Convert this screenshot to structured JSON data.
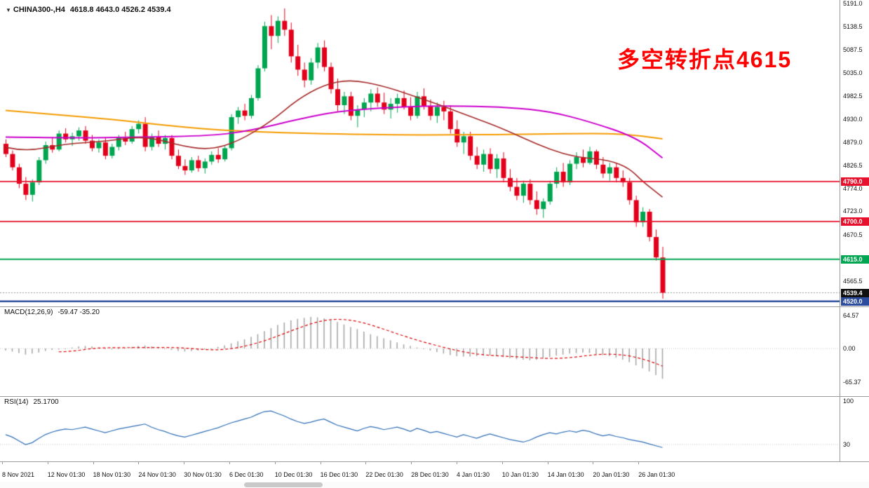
{
  "symbol_bar": {
    "expander": "▼",
    "symbol": "CHINA300-,H4",
    "ohlc": "4618.8 4643.0 4526.2 4539.4"
  },
  "chart_data": [
    {
      "id": "price-panel",
      "type": "candlestick",
      "title": "CHINA300-,H4",
      "timeframe": "H4",
      "last_ohlc": {
        "open": 4618.8,
        "high": 4643.0,
        "low": 4526.2,
        "close": 4539.4
      },
      "ylim": [
        4509,
        5199
      ],
      "grid": false,
      "y_axis": {
        "labels": [
          "5191.0",
          "5138.5",
          "5087.5",
          "5035.0",
          "4982.5",
          "4930.0",
          "4879.0",
          "4826.5",
          "4774.0",
          "4723.0",
          "4670.5",
          "4618.0",
          "4565.5"
        ],
        "values": [
          5191.0,
          5138.5,
          5087.5,
          5035.0,
          4982.5,
          4930.0,
          4879.0,
          4826.5,
          4774.0,
          4723.0,
          4670.5,
          4618.0,
          4565.5
        ]
      },
      "x_tick_labels": [
        "8 Nov 2021",
        "12 Nov 01:30",
        "18 Nov 01:30",
        "24 Nov 01:30",
        "30 Nov 01:30",
        "6 Dec 01:30",
        "10 Dec 01:30",
        "16 Dec 01:30",
        "22 Dec 01:30",
        "28 Dec 01:30",
        "4 Jan 01:30",
        "10 Jan 01:30",
        "14 Jan 01:30",
        "20 Jan 01:30",
        "26 Jan 01:30"
      ],
      "up_color": "#00a550",
      "down_color": "#e3001b",
      "candles": [
        [
          4875,
          4885,
          4845,
          4852
        ],
        [
          4852,
          4860,
          4815,
          4822
        ],
        [
          4822,
          4830,
          4775,
          4785
        ],
        [
          4785,
          4800,
          4748,
          4760
        ],
        [
          4760,
          4795,
          4745,
          4788
        ],
        [
          4788,
          4845,
          4782,
          4838
        ],
        [
          4838,
          4880,
          4830,
          4872
        ],
        [
          4872,
          4890,
          4855,
          4862
        ],
        [
          4862,
          4905,
          4858,
          4898
        ],
        [
          4898,
          4910,
          4878,
          4885
        ],
        [
          4885,
          4900,
          4870,
          4892
        ],
        [
          4892,
          4912,
          4882,
          4905
        ],
        [
          4905,
          4915,
          4875,
          4882
        ],
        [
          4882,
          4895,
          4858,
          4865
        ],
        [
          4865,
          4885,
          4855,
          4878
        ],
        [
          4878,
          4888,
          4840,
          4848
        ],
        [
          4848,
          4875,
          4842,
          4868
        ],
        [
          4868,
          4895,
          4860,
          4888
        ],
        [
          4888,
          4902,
          4872,
          4880
        ],
        [
          4880,
          4915,
          4875,
          4908
        ],
        [
          4908,
          4928,
          4898,
          4920
        ],
        [
          4920,
          4935,
          4858,
          4868
        ],
        [
          4868,
          4898,
          4860,
          4890
        ],
        [
          4890,
          4905,
          4868,
          4875
        ],
        [
          4875,
          4895,
          4862,
          4888
        ],
        [
          4888,
          4895,
          4840,
          4848
        ],
        [
          4848,
          4862,
          4818,
          4825
        ],
        [
          4825,
          4840,
          4805,
          4815
        ],
        [
          4815,
          4845,
          4810,
          4838
        ],
        [
          4838,
          4848,
          4812,
          4820
        ],
        [
          4820,
          4842,
          4808,
          4835
        ],
        [
          4835,
          4858,
          4828,
          4850
        ],
        [
          4850,
          4865,
          4832,
          4840
        ],
        [
          4840,
          4872,
          4835,
          4865
        ],
        [
          4865,
          4942,
          4860,
          4935
        ],
        [
          4935,
          4958,
          4920,
          4950
        ],
        [
          4950,
          4965,
          4928,
          4938
        ],
        [
          4938,
          4985,
          4932,
          4978
        ],
        [
          4978,
          5052,
          4972,
          5045
        ],
        [
          5045,
          5150,
          5038,
          5140
        ],
        [
          5140,
          5165,
          5088,
          5118
        ],
        [
          5118,
          5162,
          5102,
          5152
        ],
        [
          5152,
          5180,
          5118,
          5132
        ],
        [
          5132,
          5148,
          5058,
          5072
        ],
        [
          5072,
          5098,
          5028,
          5042
        ],
        [
          5042,
          5058,
          5002,
          5018
        ],
        [
          5018,
          5068,
          5008,
          5058
        ],
        [
          5058,
          5102,
          5045,
          5092
        ],
        [
          5092,
          5108,
          5038,
          5048
        ],
        [
          5048,
          5058,
          4988,
          4998
        ],
        [
          4998,
          5022,
          4948,
          4962
        ],
        [
          4962,
          4992,
          4942,
          4982
        ],
        [
          4982,
          4992,
          4928,
          4938
        ],
        [
          4938,
          4962,
          4912,
          4952
        ],
        [
          4952,
          4978,
          4935,
          4968
        ],
        [
          4968,
          4998,
          4948,
          4988
        ],
        [
          4988,
          5002,
          4958,
          4968
        ],
        [
          4968,
          4990,
          4942,
          4952
        ],
        [
          4952,
          4978,
          4932,
          4965
        ],
        [
          4965,
          4988,
          4945,
          4978
        ],
        [
          4978,
          4995,
          4952,
          4958
        ],
        [
          4958,
          4980,
          4928,
          4938
        ],
        [
          4938,
          4992,
          4932,
          4982
        ],
        [
          4982,
          5000,
          4952,
          4960
        ],
        [
          4960,
          4975,
          4928,
          4938
        ],
        [
          4938,
          4968,
          4922,
          4958
        ],
        [
          4958,
          4972,
          4928,
          4948
        ],
        [
          4948,
          4962,
          4898,
          4908
        ],
        [
          4908,
          4928,
          4868,
          4878
        ],
        [
          4878,
          4902,
          4852,
          4892
        ],
        [
          4892,
          4902,
          4838,
          4848
        ],
        [
          4848,
          4868,
          4818,
          4828
        ],
        [
          4828,
          4862,
          4812,
          4852
        ],
        [
          4852,
          4865,
          4808,
          4818
        ],
        [
          4818,
          4852,
          4798,
          4842
        ],
        [
          4842,
          4856,
          4788,
          4798
        ],
        [
          4798,
          4818,
          4768,
          4778
        ],
        [
          4778,
          4798,
          4748,
          4758
        ],
        [
          4758,
          4792,
          4742,
          4785
        ],
        [
          4785,
          4795,
          4738,
          4748
        ],
        [
          4748,
          4768,
          4715,
          4728
        ],
        [
          4728,
          4752,
          4708,
          4745
        ],
        [
          4745,
          4792,
          4738,
          4785
        ],
        [
          4785,
          4822,
          4775,
          4812
        ],
        [
          4812,
          4832,
          4778,
          4788
        ],
        [
          4788,
          4838,
          4782,
          4830
        ],
        [
          4830,
          4856,
          4818,
          4845
        ],
        [
          4845,
          4862,
          4822,
          4832
        ],
        [
          4832,
          4868,
          4828,
          4858
        ],
        [
          4858,
          4862,
          4818,
          4828
        ],
        [
          4828,
          4845,
          4798,
          4808
        ],
        [
          4808,
          4832,
          4792,
          4822
        ],
        [
          4822,
          4832,
          4788,
          4798
        ],
        [
          4798,
          4815,
          4778,
          4788
        ],
        [
          4788,
          4798,
          4738,
          4748
        ],
        [
          4748,
          4758,
          4688,
          4698
        ],
        [
          4698,
          4732,
          4688,
          4722
        ],
        [
          4722,
          4728,
          4655,
          4665
        ],
        [
          4665,
          4682,
          4612,
          4619
        ],
        [
          4618.8,
          4643.0,
          4526.2,
          4539.4
        ]
      ],
      "moving_averages": [
        {
          "name": "orange-ma",
          "color": "#f59b00",
          "width": 2,
          "points": [
            [
              0,
              4950
            ],
            [
              8,
              4940
            ],
            [
              16,
              4930
            ],
            [
              25,
              4915
            ],
            [
              33,
              4905
            ],
            [
              42,
              4900
            ],
            [
              50,
              4897
            ],
            [
              59,
              4895
            ],
            [
              67,
              4895
            ],
            [
              76,
              4896
            ],
            [
              84,
              4898
            ],
            [
              93,
              4898
            ],
            [
              99,
              4886
            ]
          ]
        },
        {
          "name": "magenta-ma",
          "color": "#cc00cc",
          "width": 2,
          "points": [
            [
              0,
              4890
            ],
            [
              10,
              4888
            ],
            [
              20,
              4890
            ],
            [
              31,
              4893
            ],
            [
              37,
              4905
            ],
            [
              44,
              4930
            ],
            [
              50,
              4948
            ],
            [
              57,
              4956
            ],
            [
              63,
              4960
            ],
            [
              69,
              4960
            ],
            [
              76,
              4957
            ],
            [
              82,
              4948
            ],
            [
              88,
              4925
            ],
            [
              95,
              4890
            ],
            [
              99,
              4843
            ]
          ]
        },
        {
          "name": "darkred-ma",
          "color": "#a52a2a",
          "width": 1.6,
          "points": [
            [
              0,
              4867
            ],
            [
              3,
              4857
            ],
            [
              9,
              4875
            ],
            [
              15,
              4880
            ],
            [
              21,
              4893
            ],
            [
              27,
              4868
            ],
            [
              31,
              4862
            ],
            [
              35,
              4880
            ],
            [
              40,
              4925
            ],
            [
              44,
              4975
            ],
            [
              48,
              5008
            ],
            [
              52,
              5020
            ],
            [
              57,
              5005
            ],
            [
              61,
              4985
            ],
            [
              65,
              4965
            ],
            [
              69,
              4942
            ],
            [
              74,
              4915
            ],
            [
              78,
              4888
            ],
            [
              82,
              4862
            ],
            [
              86,
              4845
            ],
            [
              91,
              4838
            ],
            [
              94,
              4820
            ],
            [
              96,
              4790
            ],
            [
              99,
              4755
            ]
          ]
        }
      ],
      "h_lines": [
        {
          "label": "4790.0",
          "price": 4790.0,
          "color": "#e8112d",
          "width": 1.6
        },
        {
          "label": "4700.0",
          "price": 4700.0,
          "color": "#e8112d",
          "width": 1.6
        },
        {
          "label": "4615.0",
          "price": 4615.0,
          "color": "#00a651",
          "width": 2
        },
        {
          "label": "4520.0",
          "price": 4520.0,
          "color": "#2c4d9e",
          "width": 2.5
        }
      ],
      "current_price": {
        "label": "4539.4",
        "value": 4539.4,
        "tag_bg": "#101010",
        "line_color": "#999999"
      },
      "annotation": {
        "text": "多空转折点4615",
        "color": "#ff0000"
      }
    },
    {
      "id": "macd-panel",
      "type": "bar",
      "label": "MACD(12,26,9)",
      "values_text": "-59.47 -35.20",
      "macd_value": -59.47,
      "signal_value": -35.2,
      "signal_period": 9,
      "histogram_color": "#a8a8a8",
      "signal_color": "#e00000",
      "y_axis": {
        "labels": [
          "64.57",
          "0.00",
          "-65.37"
        ],
        "values": [
          64.57,
          0,
          -65.37
        ]
      },
      "histogram": [
        -4,
        -6,
        -9,
        -12,
        -10,
        -8,
        -5,
        -3,
        -2,
        0,
        2,
        4,
        5,
        4,
        2,
        0,
        -2,
        -1,
        1,
        3,
        5,
        6,
        4,
        2,
        0,
        -3,
        -5,
        -6,
        -5,
        -4,
        -2,
        0,
        3,
        6,
        10,
        14,
        18,
        23,
        28,
        34,
        40,
        46,
        51,
        55,
        58,
        60,
        62,
        61,
        59,
        56,
        52,
        47,
        42,
        38,
        33,
        28,
        24,
        20,
        16,
        12,
        8,
        5,
        2,
        -1,
        -4,
        -7,
        -10,
        -13,
        -15,
        -16,
        -16,
        -15,
        -14,
        -14,
        -15,
        -17,
        -19,
        -21,
        -22,
        -23,
        -22,
        -20,
        -17,
        -14,
        -12,
        -10,
        -9,
        -8,
        -9,
        -11,
        -13,
        -15,
        -18,
        -22,
        -27,
        -33,
        -39,
        -45,
        -52,
        -59.47
      ]
    },
    {
      "id": "rsi-panel",
      "type": "line",
      "label": "RSI(14)",
      "value_text": "25.1700",
      "current_value": 25.17,
      "line_color": "#2f6eb5",
      "level_lines": [
        30
      ],
      "y_axis": {
        "labels": [
          "100",
          "30"
        ],
        "values": [
          100,
          30
        ]
      },
      "values": [
        46,
        42,
        36,
        30,
        33,
        40,
        46,
        50,
        53,
        55,
        54,
        56,
        58,
        55,
        52,
        49,
        52,
        55,
        57,
        59,
        61,
        63,
        58,
        54,
        51,
        47,
        44,
        42,
        45,
        48,
        51,
        54,
        57,
        61,
        65,
        68,
        71,
        74,
        79,
        83,
        84,
        80,
        76,
        71,
        67,
        64,
        66,
        69,
        71,
        66,
        61,
        58,
        55,
        52,
        56,
        59,
        57,
        54,
        56,
        58,
        55,
        51,
        56,
        53,
        49,
        51,
        48,
        45,
        42,
        46,
        43,
        40,
        44,
        47,
        44,
        41,
        38,
        36,
        34,
        37,
        42,
        46,
        49,
        47,
        50,
        52,
        50,
        53,
        51,
        47,
        44,
        46,
        43,
        41,
        38,
        36,
        34,
        31,
        28,
        25.17
      ]
    }
  ]
}
